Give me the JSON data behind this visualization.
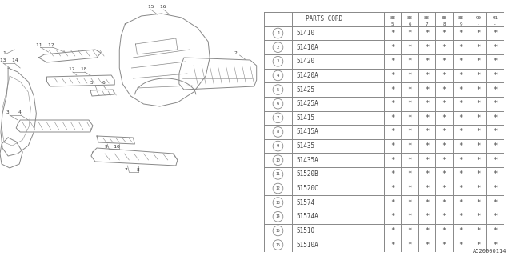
{
  "title": "",
  "diagram_code": "A520000114",
  "table_header": "PARTS CORD",
  "col_headers": [
    "88\n5",
    "88\n6",
    "88\n7",
    "88\n8",
    "88\n9",
    "90\n-",
    "91\n-"
  ],
  "parts": [
    {
      "num": 1,
      "code": "51410"
    },
    {
      "num": 2,
      "code": "51410A"
    },
    {
      "num": 3,
      "code": "51420"
    },
    {
      "num": 4,
      "code": "51420A"
    },
    {
      "num": 5,
      "code": "51425"
    },
    {
      "num": 6,
      "code": "51425A"
    },
    {
      "num": 7,
      "code": "51415"
    },
    {
      "num": 8,
      "code": "51415A"
    },
    {
      "num": 9,
      "code": "51435"
    },
    {
      "num": 10,
      "code": "51435A"
    },
    {
      "num": 11,
      "code": "51520B"
    },
    {
      "num": 12,
      "code": "51520C"
    },
    {
      "num": 13,
      "code": "51574"
    },
    {
      "num": 14,
      "code": "51574A"
    },
    {
      "num": 15,
      "code": "51510"
    },
    {
      "num": 16,
      "code": "51510A"
    }
  ],
  "num_cols": 7,
  "bg_color": "#ffffff",
  "line_color": "#888888",
  "text_color": "#444444",
  "draw_line_color": "#888888"
}
